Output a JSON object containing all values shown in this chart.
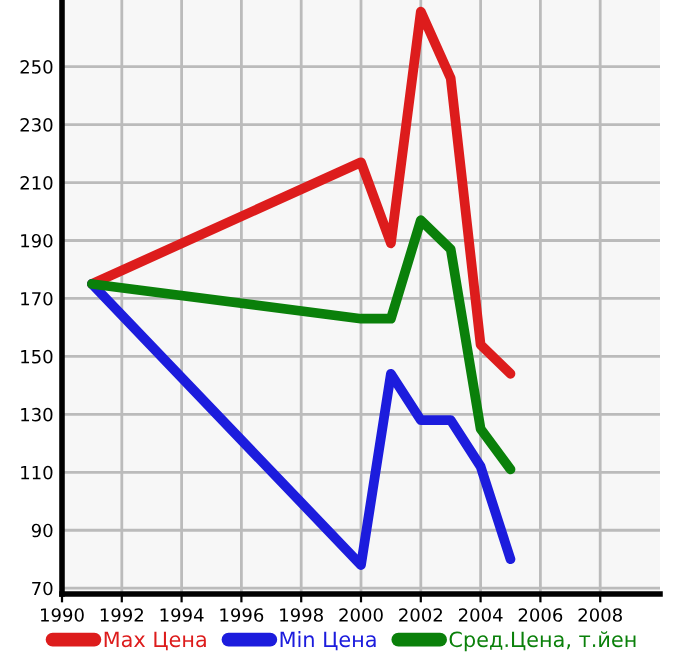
{
  "chart_data": {
    "type": "line",
    "x": [
      1991,
      2000,
      2001,
      2002,
      2003,
      2004,
      2005
    ],
    "series": [
      {
        "name": "Max Цена",
        "color": "#dd1c1c",
        "values": [
          175,
          217,
          189,
          269,
          246,
          154,
          144
        ]
      },
      {
        "name": "Min Цена",
        "color": "#1c1cdd",
        "values": [
          175,
          78,
          144,
          128,
          128,
          112,
          80
        ]
      },
      {
        "name": "Сред.Цена, т.йен",
        "color": "#0a800a",
        "values": [
          175,
          163,
          163,
          197,
          187,
          125,
          111
        ]
      }
    ],
    "xlim": [
      1990,
      2010
    ],
    "ylim": [
      68,
      273
    ],
    "xticks": [
      1990,
      1992,
      1994,
      1996,
      1998,
      2000,
      2002,
      2004,
      2006,
      2008
    ],
    "yticks": [
      70,
      90,
      110,
      130,
      150,
      170,
      190,
      210,
      230,
      250
    ],
    "grid": true,
    "legend": "bottom",
    "marker": "none",
    "line_style": "solid"
  }
}
